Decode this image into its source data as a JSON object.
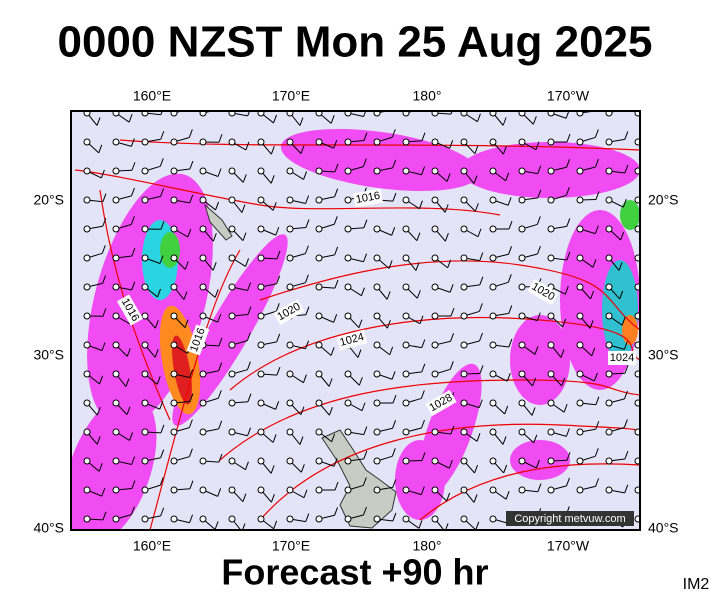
{
  "header": {
    "title": "0000 NZST Mon 25 Aug 2025"
  },
  "map": {
    "lon_labels": [
      "160°E",
      "170°E",
      "180°",
      "170°W"
    ],
    "lat_labels": [
      "20°S",
      "30°S",
      "40°S"
    ],
    "isobar_labels": [
      "1016",
      "1016",
      "1016",
      "1020",
      "1020",
      "1024",
      "1024",
      "1028"
    ],
    "copyright": "Copyright metvuw.com"
  },
  "footer": {
    "forecast": "Forecast +90 hr",
    "code": "IM2"
  }
}
